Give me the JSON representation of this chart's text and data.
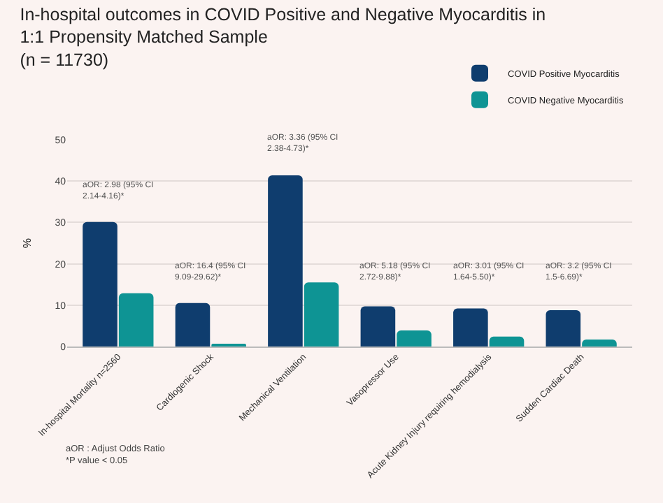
{
  "chart_data": {
    "type": "bar",
    "title": "In-hospital outcomes in COVID Positive and Negative Myocarditis in 1:1 Propensity Matched Sample (n = 11730)",
    "ylabel": "%",
    "categories": [
      "In-hospital Mortality n=2560",
      "Cardiogenic Shock",
      "Mechanical Ventilation",
      "Vasopressor Use",
      "Acute Kidney Injury requiring hemodialysis",
      "Sudden Cardiac Death"
    ],
    "series": [
      {
        "name": "COVID Positive Myocarditis",
        "color": "#0f3d6e",
        "values": [
          30.1,
          10.5,
          41.4,
          9.7,
          9.2,
          8.8
        ]
      },
      {
        "name": "COVID Negative Myocarditis",
        "color": "#0e9494",
        "values": [
          12.9,
          0.5,
          15.5,
          3.9,
          2.4,
          1.7
        ]
      }
    ],
    "ylim": [
      0,
      50
    ],
    "yticks": [
      0,
      10,
      20,
      30,
      40,
      50
    ],
    "grid": "y",
    "legend": "top right",
    "annotations": [
      "aOR: 2.98 (95% CI 2.14-4.16)*",
      "aOR: 16.4 (95% CI 9.09-29.62)*",
      "aOR: 3.36 (95% CI 2.38-4.73)*",
      "aOR: 5.18 (95% CI 2.72-9.88)*",
      "aOR: 3.01 (95% CI 1.64-5.50)*",
      "aOR: 3.2 (95% CI 1.5-6.69)*",
      "aOR : Adjust Odds Ratio",
      "*P value < 0.05"
    ]
  }
}
